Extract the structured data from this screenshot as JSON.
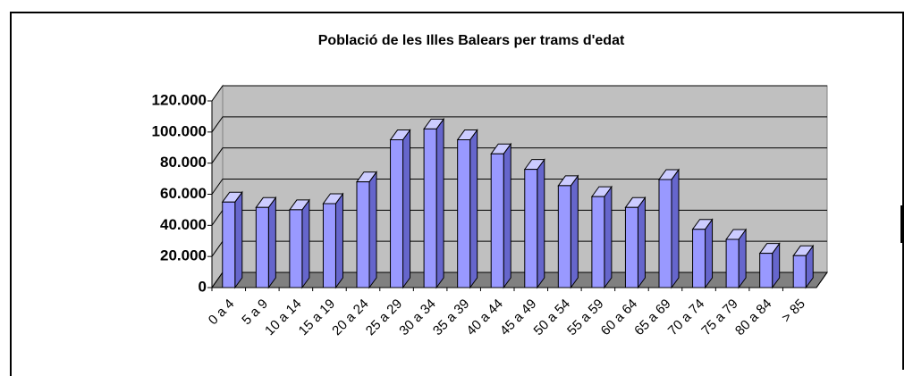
{
  "chart_data": {
    "type": "bar3d",
    "title": "Població de les Illes Balears per trams d'edat",
    "categories": [
      "0 a 4",
      "5 a 9",
      "10 a 14",
      "15 a 19",
      "20 a 24",
      "25 a 29",
      "30 a 34",
      "35 a 39",
      "40 a 44",
      "45 a 49",
      "50 a 54",
      "55 a 59",
      "60 a 64",
      "65 a 69",
      "70 a 74",
      "75 a 79",
      "80 a 84",
      "> 85"
    ],
    "values": [
      55000,
      51500,
      50000,
      54000,
      68000,
      95000,
      102000,
      95000,
      86000,
      76000,
      65500,
      58500,
      51500,
      69500,
      37500,
      31000,
      22000,
      20500
    ],
    "color": "#9999ff",
    "ylim": [
      0,
      120000
    ],
    "yticks": [
      0,
      {
        "value": 20000,
        "label": "20.000"
      },
      {
        "value": 40000,
        "label": "40.000"
      },
      {
        "value": 60000,
        "label": "60.000"
      },
      {
        "value": 80000,
        "label": "80.000"
      },
      {
        "value": 100000,
        "label": "100.000"
      },
      {
        "value": 120000,
        "label": "120.000"
      }
    ],
    "grid": true
  }
}
